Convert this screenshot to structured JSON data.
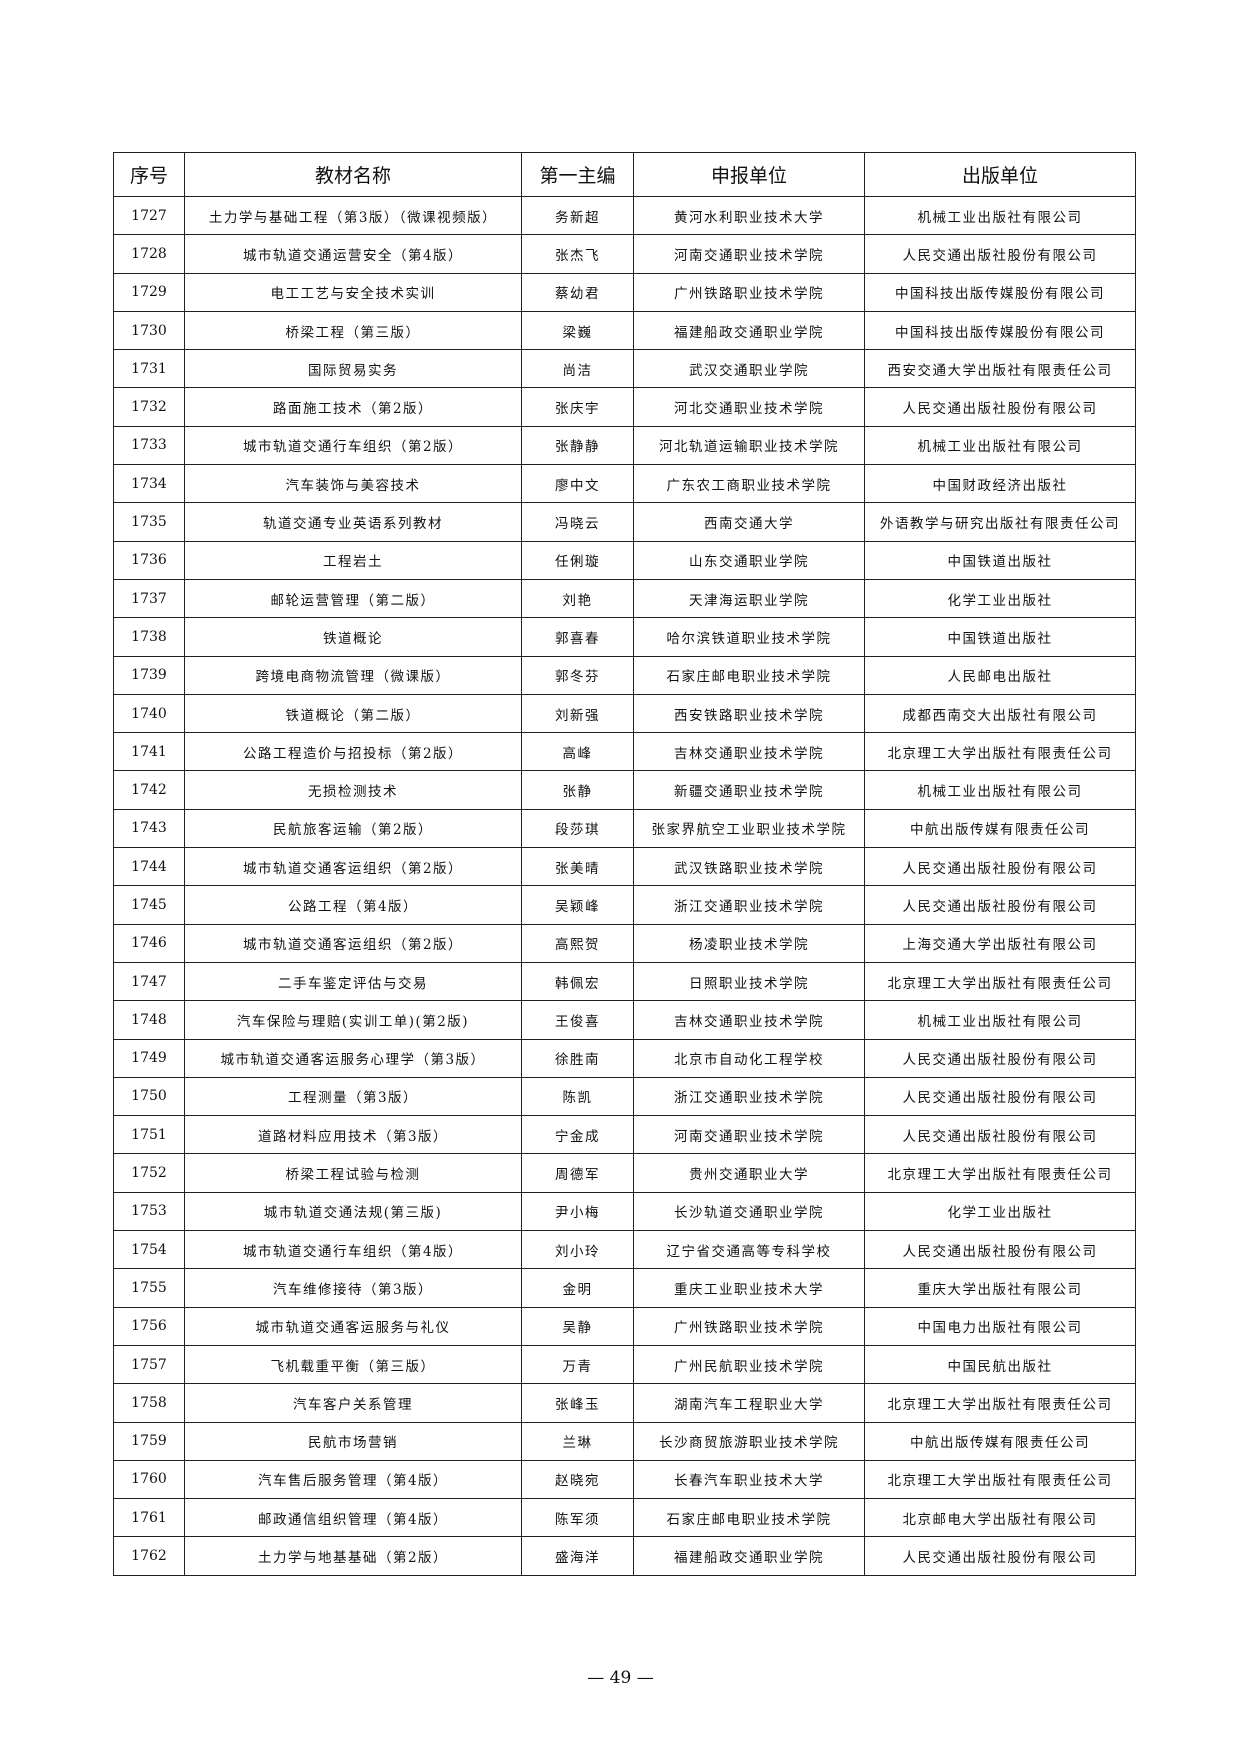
{
  "headers": [
    "序号",
    "教材名称",
    "第一主编",
    "申报单位",
    "出版单位"
  ],
  "rows": [
    [
      "1727",
      "土力学与基础工程（第3版）（微课视频版）",
      "务新超",
      "黄河水利职业技术大学",
      "机械工业出版社有限公司"
    ],
    [
      "1728",
      "城市轨道交通运营安全（第4版）",
      "张杰飞",
      "河南交通职业技术学院",
      "人民交通出版社股份有限公司"
    ],
    [
      "1729",
      "电工工艺与安全技术实训",
      "蔡幼君",
      "广州铁路职业技术学院",
      "中国科技出版传媒股份有限公司"
    ],
    [
      "1730",
      "桥梁工程（第三版）",
      "梁巍",
      "福建船政交通职业学院",
      "中国科技出版传媒股份有限公司"
    ],
    [
      "1731",
      "国际贸易实务",
      "尚洁",
      "武汉交通职业学院",
      "西安交通大学出版社有限责任公司"
    ],
    [
      "1732",
      "路面施工技术（第2版）",
      "张庆宇",
      "河北交通职业技术学院",
      "人民交通出版社股份有限公司"
    ],
    [
      "1733",
      "城市轨道交通行车组织（第2版）",
      "张静静",
      "河北轨道运输职业技术学院",
      "机械工业出版社有限公司"
    ],
    [
      "1734",
      "汽车装饰与美容技术",
      "廖中文",
      "广东农工商职业技术学院",
      "中国财政经济出版社"
    ],
    [
      "1735",
      "轨道交通专业英语系列教材",
      "冯晓云",
      "西南交通大学",
      "外语教学与研究出版社有限责任公司"
    ],
    [
      "1736",
      "工程岩土",
      "任俐璇",
      "山东交通职业学院",
      "中国铁道出版社"
    ],
    [
      "1737",
      "邮轮运营管理（第二版）",
      "刘艳",
      "天津海运职业学院",
      "化学工业出版社"
    ],
    [
      "1738",
      "铁道概论",
      "郭喜春",
      "哈尔滨铁道职业技术学院",
      "中国铁道出版社"
    ],
    [
      "1739",
      "跨境电商物流管理（微课版）",
      "郭冬芬",
      "石家庄邮电职业技术学院",
      "人民邮电出版社"
    ],
    [
      "1740",
      "铁道概论（第二版）",
      "刘新强",
      "西安铁路职业技术学院",
      "成都西南交大出版社有限公司"
    ],
    [
      "1741",
      "公路工程造价与招投标（第2版）",
      "高峰",
      "吉林交通职业技术学院",
      "北京理工大学出版社有限责任公司"
    ],
    [
      "1742",
      "无损检测技术",
      "张静",
      "新疆交通职业技术学院",
      "机械工业出版社有限公司"
    ],
    [
      "1743",
      "民航旅客运输（第2版）",
      "段莎琪",
      "张家界航空工业职业技术学院",
      "中航出版传媒有限责任公司"
    ],
    [
      "1744",
      "城市轨道交通客运组织（第2版）",
      "张美晴",
      "武汉铁路职业技术学院",
      "人民交通出版社股份有限公司"
    ],
    [
      "1745",
      "公路工程（第4版）",
      "吴颖峰",
      "浙江交通职业技术学院",
      "人民交通出版社股份有限公司"
    ],
    [
      "1746",
      "城市轨道交通客运组织（第2版）",
      "高熙贺",
      "杨凌职业技术学院",
      "上海交通大学出版社有限公司"
    ],
    [
      "1747",
      "二手车鉴定评估与交易",
      "韩佩宏",
      "日照职业技术学院",
      "北京理工大学出版社有限责任公司"
    ],
    [
      "1748",
      "汽车保险与理赔(实训工单)(第2版)",
      "王俊喜",
      "吉林交通职业技术学院",
      "机械工业出版社有限公司"
    ],
    [
      "1749",
      "城市轨道交通客运服务心理学（第3版）",
      "徐胜南",
      "北京市自动化工程学校",
      "人民交通出版社股份有限公司"
    ],
    [
      "1750",
      "工程测量（第3版）",
      "陈凯",
      "浙江交通职业技术学院",
      "人民交通出版社股份有限公司"
    ],
    [
      "1751",
      "道路材料应用技术（第3版）",
      "宁金成",
      "河南交通职业技术学院",
      "人民交通出版社股份有限公司"
    ],
    [
      "1752",
      "桥梁工程试验与检测",
      "周德军",
      "贵州交通职业大学",
      "北京理工大学出版社有限责任公司"
    ],
    [
      "1753",
      "城市轨道交通法规(第三版)",
      "尹小梅",
      "长沙轨道交通职业学院",
      "化学工业出版社"
    ],
    [
      "1754",
      "城市轨道交通行车组织（第4版）",
      "刘小玲",
      "辽宁省交通高等专科学校",
      "人民交通出版社股份有限公司"
    ],
    [
      "1755",
      "汽车维修接待（第3版）",
      "金明",
      "重庆工业职业技术大学",
      "重庆大学出版社有限公司"
    ],
    [
      "1756",
      "城市轨道交通客运服务与礼仪",
      "吴静",
      "广州铁路职业技术学院",
      "中国电力出版社有限公司"
    ],
    [
      "1757",
      "飞机载重平衡（第三版）",
      "万青",
      "广州民航职业技术学院",
      "中国民航出版社"
    ],
    [
      "1758",
      "汽车客户关系管理",
      "张峰玉",
      "湖南汽车工程职业大学",
      "北京理工大学出版社有限责任公司"
    ],
    [
      "1759",
      "民航市场营销",
      "兰琳",
      "长沙商贸旅游职业技术学院",
      "中航出版传媒有限责任公司"
    ],
    [
      "1760",
      "汽车售后服务管理（第4版）",
      "赵晓宛",
      "长春汽车职业技术大学",
      "北京理工大学出版社有限责任公司"
    ],
    [
      "1761",
      "邮政通信组织管理（第4版）",
      "陈军须",
      "石家庄邮电职业技术学院",
      "北京邮电大学出版社有限公司"
    ],
    [
      "1762",
      "土力学与地基基础（第2版）",
      "盛海洋",
      "福建船政交通职业学院",
      "人民交通出版社股份有限公司"
    ]
  ],
  "page_number": "— 49 —"
}
